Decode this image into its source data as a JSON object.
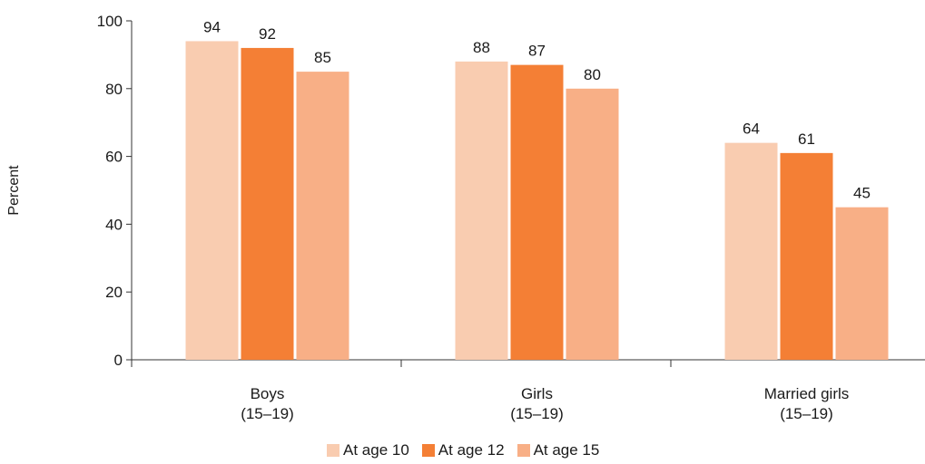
{
  "chart_data": {
    "type": "bar",
    "ylabel": "Percent",
    "ylim": [
      0,
      100
    ],
    "yticks": [
      0,
      20,
      40,
      60,
      80,
      100
    ],
    "categories": [
      [
        "Boys",
        "(15–19)"
      ],
      [
        "Girls",
        "(15–19)"
      ],
      [
        "Married girls",
        "(15–19)"
      ]
    ],
    "series": [
      {
        "name": "At age 10",
        "color": "#f9ccb0",
        "values": [
          94,
          88,
          64
        ]
      },
      {
        "name": "At age 12",
        "color": "#f47f35",
        "values": [
          92,
          87,
          61
        ]
      },
      {
        "name": "At age 15",
        "color": "#f8af86",
        "values": [
          85,
          80,
          45
        ]
      }
    ],
    "legend_position": "bottom-center",
    "grid": false
  }
}
